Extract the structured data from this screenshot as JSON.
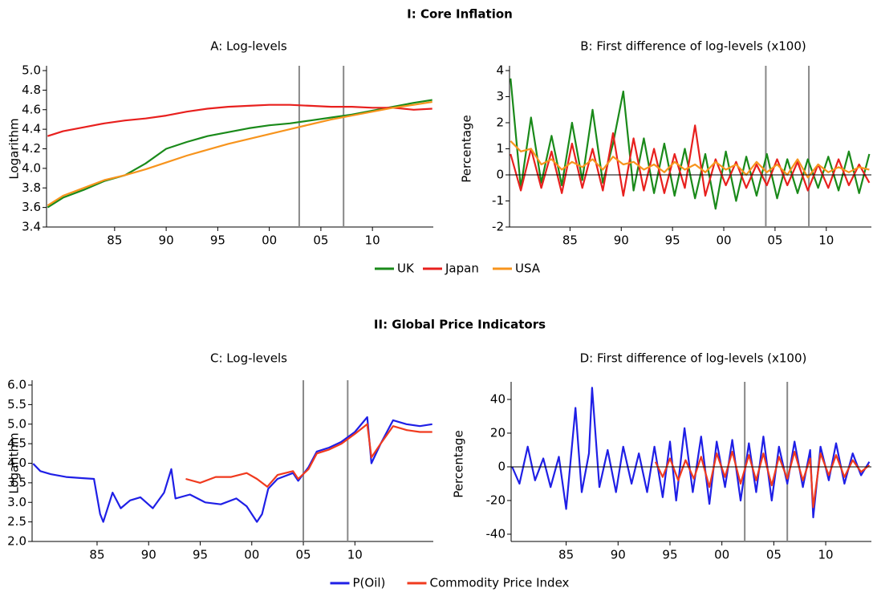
{
  "sections": [
    {
      "title": "I: Core Inflation"
    },
    {
      "title": "II: Global Price Indicators"
    }
  ],
  "chart_data": [
    {
      "type": "line",
      "title": "A: Log-levels",
      "y_label": "Logarithm",
      "legend": "bottom",
      "xlim": [
        1978.4,
        2015.9
      ],
      "ylim": [
        3.4,
        5.0
      ],
      "xticks": [
        {
          "value": 1985,
          "label": "85"
        },
        {
          "value": 1990,
          "label": "90"
        },
        {
          "value": 1995,
          "label": "95"
        },
        {
          "value": 2000,
          "label": "00"
        },
        {
          "value": 2005,
          "label": "05"
        },
        {
          "value": 2010,
          "label": "10"
        }
      ],
      "yticks": [
        3.4,
        3.6,
        3.8,
        {
          "value": 4.0,
          "label": "4.0"
        },
        4.2,
        4.4,
        4.6,
        4.8,
        {
          "value": 5.0,
          "label": "5.0"
        }
      ],
      "vlines": [
        2002.9,
        2007.2
      ],
      "x": [
        1978.5,
        1980,
        1982,
        1984,
        1986,
        1988,
        1990,
        1992,
        1994,
        1996,
        1998,
        2000,
        2002,
        2004,
        2006,
        2008,
        2010,
        2012,
        2014,
        2015.8
      ],
      "series": [
        {
          "name": "UK",
          "color": "#1a8a1a",
          "values": [
            3.6,
            3.7,
            3.78,
            3.87,
            3.93,
            4.05,
            4.2,
            4.27,
            4.33,
            4.37,
            4.41,
            4.44,
            4.46,
            4.49,
            4.52,
            4.55,
            4.59,
            4.63,
            4.67,
            4.7
          ]
        },
        {
          "name": "Japan",
          "color": "#e8201e",
          "values": [
            4.33,
            4.38,
            4.42,
            4.46,
            4.49,
            4.51,
            4.54,
            4.58,
            4.61,
            4.63,
            4.64,
            4.65,
            4.65,
            4.64,
            4.63,
            4.63,
            4.62,
            4.62,
            4.6,
            4.61
          ]
        },
        {
          "name": "USA",
          "color": "#f7941d",
          "values": [
            3.62,
            3.72,
            3.8,
            3.88,
            3.93,
            3.99,
            4.06,
            4.13,
            4.19,
            4.25,
            4.3,
            4.35,
            4.4,
            4.45,
            4.5,
            4.54,
            4.58,
            4.62,
            4.65,
            4.68
          ]
        }
      ]
    },
    {
      "type": "line",
      "title": "B: First difference of log-levels (x100)",
      "y_label": "Percentage",
      "xlim": [
        1979.1,
        2014.4
      ],
      "ylim": [
        -2,
        4
      ],
      "xticks": [
        {
          "value": 1985,
          "label": "85"
        },
        {
          "value": 1990,
          "label": "90"
        },
        {
          "value": 1995,
          "label": "95"
        },
        {
          "value": 2000,
          "label": "00"
        },
        {
          "value": 2005,
          "label": "05"
        },
        {
          "value": 2010,
          "label": "10"
        }
      ],
      "yticks": [
        -2,
        -1,
        0,
        1,
        2,
        3,
        4
      ],
      "vlines": [
        2004.1,
        2008.3
      ],
      "x": [
        1979.2,
        1980.2,
        1981.2,
        1982.2,
        1983.2,
        1984.2,
        1985.2,
        1986.2,
        1987.2,
        1988.2,
        1989.2,
        1990.2,
        1991.2,
        1992.2,
        1993.2,
        1994.2,
        1995.2,
        1996.2,
        1997.2,
        1998.2,
        1999.2,
        2000.2,
        2001.2,
        2002.2,
        2003.2,
        2004.2,
        2005.2,
        2006.2,
        2007.2,
        2008.2,
        2009.2,
        2010.2,
        2011.2,
        2012.2,
        2013.2,
        2014.2
      ],
      "series": [
        {
          "name": "UK",
          "color": "#1a8a1a",
          "values": [
            3.7,
            -0.5,
            2.2,
            -0.3,
            1.5,
            -0.4,
            2.0,
            -0.2,
            2.5,
            -0.3,
            1.2,
            3.2,
            -0.6,
            1.4,
            -0.7,
            1.2,
            -0.8,
            1.0,
            -0.9,
            0.8,
            -1.3,
            0.9,
            -1.0,
            0.7,
            -0.8,
            0.8,
            -0.9,
            0.6,
            -0.7,
            0.6,
            -0.5,
            0.7,
            -0.6,
            0.9,
            -0.7,
            0.8
          ]
        },
        {
          "name": "Japan",
          "color": "#e8201e",
          "values": [
            0.8,
            -0.6,
            1.0,
            -0.5,
            0.9,
            -0.7,
            1.2,
            -0.5,
            1.0,
            -0.6,
            1.6,
            -0.8,
            1.4,
            -0.6,
            1.0,
            -0.7,
            0.8,
            -0.5,
            1.9,
            -0.8,
            0.6,
            -0.4,
            0.5,
            -0.5,
            0.4,
            -0.4,
            0.6,
            -0.4,
            0.5,
            -0.6,
            0.4,
            -0.5,
            0.6,
            -0.4,
            0.4,
            -0.3
          ]
        },
        {
          "name": "USA",
          "color": "#f7941d",
          "values": [
            1.3,
            0.9,
            1.0,
            0.4,
            0.6,
            0.2,
            0.5,
            0.3,
            0.6,
            0.2,
            0.7,
            0.4,
            0.5,
            0.2,
            0.4,
            0.1,
            0.5,
            0.2,
            0.4,
            0.1,
            0.5,
            0.2,
            0.4,
            0.0,
            0.5,
            0.1,
            0.4,
            0.0,
            0.6,
            -0.1,
            0.4,
            0.1,
            0.3,
            0.1,
            0.3,
            0.2
          ]
        }
      ]
    },
    {
      "type": "line",
      "title": "C: Log-levels",
      "y_label": "Logarithm",
      "legend": "bottom",
      "xlim": [
        1978.7,
        2017.6
      ],
      "ylim": [
        2.0,
        6.0
      ],
      "xticks": [
        {
          "value": 1985,
          "label": "85"
        },
        {
          "value": 1990,
          "label": "90"
        },
        {
          "value": 1995,
          "label": "95"
        },
        {
          "value": 2000,
          "label": "00"
        },
        {
          "value": 2005,
          "label": "05"
        },
        {
          "value": 2010,
          "label": "10"
        }
      ],
      "yticks": [
        {
          "value": 2.0,
          "label": "2.0"
        },
        2.5,
        {
          "value": 3.0,
          "label": "3.0"
        },
        3.5,
        {
          "value": 4.0,
          "label": "4.0"
        },
        4.5,
        {
          "value": 5.0,
          "label": "5.0"
        },
        5.5,
        {
          "value": 6.0,
          "label": "6.0"
        }
      ],
      "vlines": [
        2005.0,
        2009.3
      ],
      "series": [
        {
          "name": "P(Oil)",
          "color": "#1f1fe6",
          "x": [
            1978.8,
            1979.5,
            1980.5,
            1982,
            1983.5,
            1984.7,
            1985.3,
            1985.6,
            1986.5,
            1987.3,
            1988.2,
            1989.2,
            1990.4,
            1991.5,
            1992.2,
            1992.6,
            1994,
            1995.5,
            1997,
            1998.5,
            1999.5,
            2000.5,
            2001,
            2001.6,
            2002.5,
            2004,
            2004.5,
            2005.5,
            2006.3,
            2007.5,
            2008.7,
            2010,
            2011.2,
            2011.6,
            2012.5,
            2013.7,
            2015,
            2016.3,
            2017.5
          ],
          "values": [
            3.99,
            3.8,
            3.72,
            3.65,
            3.62,
            3.6,
            2.7,
            2.5,
            3.25,
            2.85,
            3.05,
            3.13,
            2.85,
            3.25,
            3.85,
            3.1,
            3.2,
            3.0,
            2.95,
            3.1,
            2.9,
            2.5,
            2.7,
            3.35,
            3.6,
            3.75,
            3.55,
            3.9,
            4.3,
            4.4,
            4.55,
            4.8,
            5.18,
            4.0,
            4.5,
            5.1,
            5.0,
            4.95,
            5.0
          ]
        },
        {
          "name": "Commodity Price Index",
          "color": "#f03a1e",
          "x": [
            1993.6,
            1995,
            1996.5,
            1998,
            1999.5,
            2000.5,
            2001.5,
            2002.5,
            2004,
            2004.5,
            2005.5,
            2006.3,
            2007.5,
            2008.7,
            2010,
            2011.2,
            2011.6,
            2012.5,
            2013.7,
            2015,
            2016.3,
            2017.5
          ],
          "values": [
            3.6,
            3.5,
            3.65,
            3.65,
            3.75,
            3.6,
            3.4,
            3.7,
            3.8,
            3.6,
            3.85,
            4.25,
            4.35,
            4.5,
            4.75,
            5.0,
            4.15,
            4.5,
            4.95,
            4.85,
            4.8,
            4.8
          ]
        }
      ]
    },
    {
      "type": "line",
      "title": "D: First difference of log-levels (x100)",
      "y_label": "Percentage",
      "xlim": [
        1979.7,
        2014.4
      ],
      "ylim": [
        -44.3,
        47.6
      ],
      "xticks": [
        {
          "value": 1985,
          "label": "85"
        },
        {
          "value": 1990,
          "label": "90"
        },
        {
          "value": 1995,
          "label": "95"
        },
        {
          "value": 2000,
          "label": "00"
        },
        {
          "value": 2005,
          "label": "05"
        },
        {
          "value": 2010,
          "label": "10"
        }
      ],
      "yticks": [
        -40,
        -20,
        0,
        20,
        40
      ],
      "vlines": [
        2002.2,
        2006.3
      ],
      "series": [
        {
          "name": "P(Oil)",
          "color": "#1f1fe6",
          "x": [
            1979.8,
            1980.5,
            1981.3,
            1982,
            1982.8,
            1983.5,
            1984.3,
            1985,
            1985.9,
            1986.5,
            1987.2,
            1987.5,
            1988.2,
            1989,
            1989.8,
            1990.5,
            1991.3,
            1992,
            1992.8,
            1993.5,
            1994.3,
            1995,
            1995.6,
            1996.4,
            1997.2,
            1998,
            1998.8,
            1999.5,
            2000.3,
            2001,
            2001.8,
            2002.6,
            2003.3,
            2004,
            2004.8,
            2005.5,
            2006.3,
            2007,
            2007.8,
            2008.5,
            2008.8,
            2009.5,
            2010.3,
            2011,
            2011.8,
            2012.6,
            2013.4,
            2014.2
          ],
          "values": [
            0,
            -10,
            12,
            -8,
            5,
            -12,
            6,
            -25,
            35,
            -15,
            8,
            47,
            -12,
            10,
            -15,
            12,
            -10,
            8,
            -15,
            12,
            -18,
            15,
            -20,
            23,
            -15,
            18,
            -22,
            15,
            -12,
            16,
            -20,
            14,
            -15,
            18,
            -20,
            12,
            -10,
            15,
            -12,
            10,
            -30,
            12,
            -8,
            14,
            -10,
            8,
            -5,
            3
          ]
        },
        {
          "name": "Commodity Price Index",
          "color": "#f03a1e",
          "x": [
            1993.6,
            1994.3,
            1995,
            1995.8,
            1996.5,
            1997.3,
            1998,
            1998.8,
            1999.5,
            2000.3,
            2001,
            2001.8,
            2002.6,
            2003.3,
            2004,
            2004.8,
            2005.5,
            2006.3,
            2007,
            2007.8,
            2008.5,
            2008.8,
            2009.5,
            2010.3,
            2011,
            2011.8,
            2012.6,
            2013.4,
            2014.2
          ],
          "values": [
            3,
            -6,
            5,
            -8,
            4,
            -7,
            6,
            -12,
            8,
            -6,
            9,
            -10,
            7,
            -8,
            8,
            -11,
            6,
            -7,
            9,
            -8,
            5,
            -24,
            8,
            -5,
            7,
            -6,
            4,
            -3,
            1
          ]
        }
      ]
    }
  ]
}
